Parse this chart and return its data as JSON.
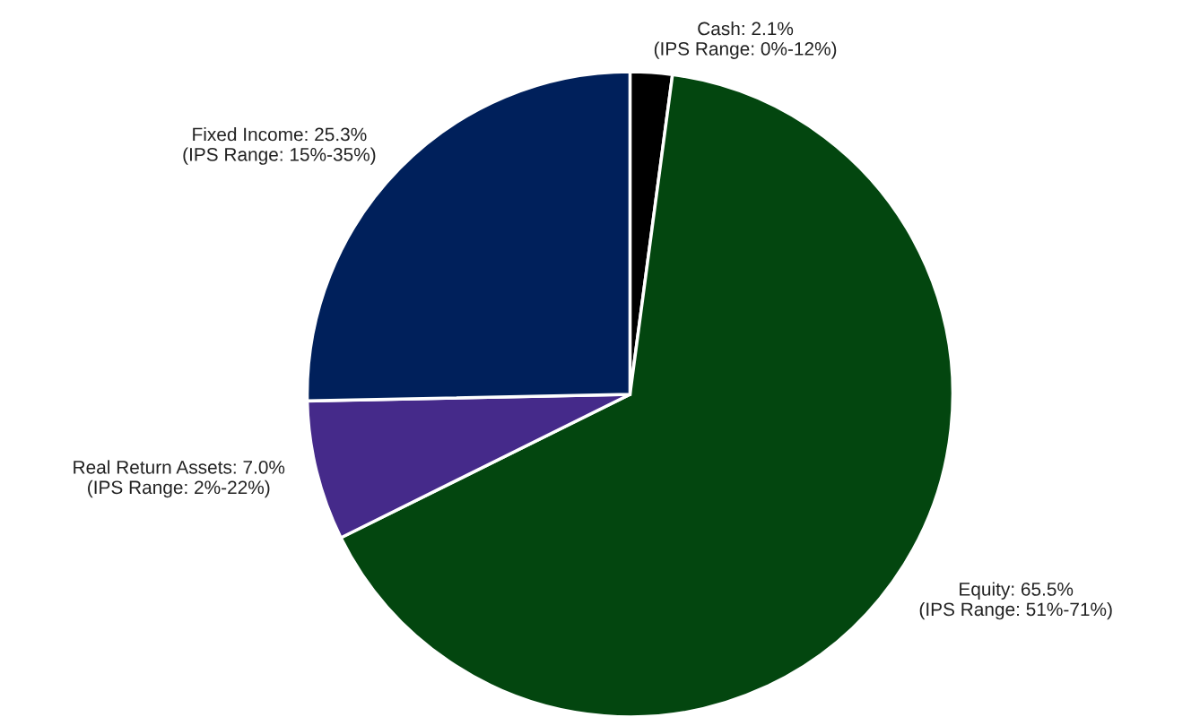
{
  "chart_data": {
    "type": "pie",
    "categories": [
      "Cash: 2.1%\n(IPS Range: 0%-12%)",
      "Equity: 65.5%\n(IPS Range: 51%-71%)",
      "Real Return Assets: 7.0%\n(IPS Range: 2%-22%)",
      "Fixed Income: 25.3%\n(IPS Range: 15%-35%)"
    ],
    "values": [
      2.1,
      65.5,
      7.0,
      25.3
    ],
    "colors": [
      "#000000",
      "#03460f",
      "#452a8a",
      "#00205b"
    ],
    "legend": false
  }
}
